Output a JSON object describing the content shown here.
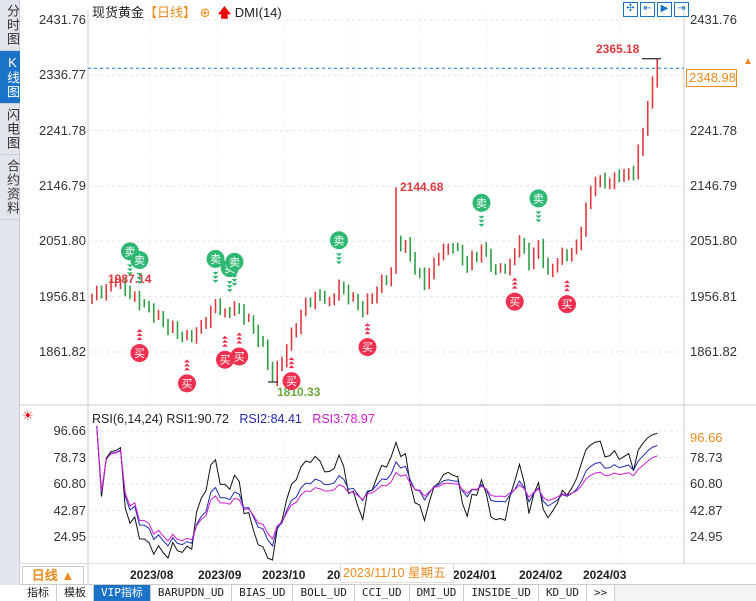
{
  "sidebar": {
    "items": [
      {
        "label": "分时图"
      },
      {
        "label": "K线图",
        "active": true
      },
      {
        "label": "闪电图"
      },
      {
        "label": "合约资料"
      }
    ]
  },
  "header": {
    "symbol": "现货黄金",
    "period": "【日线】",
    "indicator": "DMI(14)"
  },
  "toolbar": {
    "icons": [
      "crosshair-icon",
      "fit-start-icon",
      "play-icon",
      "go-end-icon"
    ]
  },
  "price_axis": {
    "labels": [
      "2431.76",
      "2336.77",
      "2241.78",
      "2146.79",
      "2051.80",
      "1956.81",
      "1861.82"
    ],
    "max": 2431.76,
    "min": 1861.82
  },
  "last_price": "2348.98",
  "annotations": {
    "high": "2365.18",
    "mid_high": "2144.68",
    "low": "1810.33",
    "left_high": "1987.14"
  },
  "colors": {
    "up": "#e0393e",
    "down": "#2e9e44",
    "sell": "#2fb872",
    "buy": "#f0304e",
    "rsi1": "#111111",
    "rsi2": "#1f2ab0",
    "rsi3": "#d21ad2",
    "accent": "#f08a1c",
    "brand": "#1a73c8"
  },
  "price_path": [
    [
      0,
      1958
    ],
    [
      3,
      1970
    ],
    [
      5,
      1985
    ],
    [
      8,
      1960
    ],
    [
      12,
      1935
    ],
    [
      16,
      1905
    ],
    [
      20,
      1885
    ],
    [
      23,
      1905
    ],
    [
      26,
      1945
    ],
    [
      28,
      1925
    ],
    [
      30,
      1940
    ],
    [
      33,
      1915
    ],
    [
      36,
      1870
    ],
    [
      38,
      1812
    ],
    [
      40,
      1850
    ],
    [
      42,
      1890
    ],
    [
      45,
      1945
    ],
    [
      48,
      1960
    ],
    [
      50,
      1945
    ],
    [
      52,
      1975
    ],
    [
      55,
      1950
    ],
    [
      57,
      1935
    ],
    [
      60,
      1970
    ],
    [
      63,
      2000
    ],
    [
      64,
      2050
    ],
    [
      66,
      2045
    ],
    [
      68,
      2005
    ],
    [
      70,
      1980
    ],
    [
      73,
      2030
    ],
    [
      76,
      2045
    ],
    [
      79,
      2010
    ],
    [
      82,
      2040
    ],
    [
      85,
      2000
    ],
    [
      88,
      2012
    ],
    [
      90,
      2055
    ],
    [
      92,
      2015
    ],
    [
      94,
      2045
    ],
    [
      96,
      1995
    ],
    [
      98,
      2020
    ],
    [
      100,
      2030
    ],
    [
      102,
      2040
    ],
    [
      104,
      2110
    ],
    [
      106,
      2160
    ],
    [
      108,
      2150
    ],
    [
      111,
      2165
    ],
    [
      114,
      2170
    ],
    [
      116,
      2240
    ],
    [
      117,
      2290
    ],
    [
      119,
      2349
    ]
  ],
  "signals": {
    "sell_label": "卖",
    "buy_label": "买",
    "sell": [
      8,
      10,
      26,
      29,
      30,
      52,
      82,
      94
    ],
    "buy": [
      10,
      20,
      28,
      31,
      42,
      58,
      89,
      100
    ]
  },
  "rsi": {
    "title": "RSI(6,14,24)",
    "rsi1": "RSI1:90.72",
    "rsi2": "RSI2:84.41",
    "rsi3": "RSI3:78.97",
    "axis_labels": [
      "96.66",
      "78.73",
      "60.80",
      "42.87",
      "24.95"
    ],
    "last": "96.66",
    "max": 96.66,
    "min": 24.95
  },
  "x_axis": {
    "labels": [
      "2023/08",
      "2023/09",
      "2023/10",
      "20",
      "2024/01",
      "2024/02",
      "2024/03"
    ],
    "tooltip": "2023/11/10 星期五",
    "period_button": "日线 ▲"
  },
  "bottom_tabs": [
    {
      "label": "指标"
    },
    {
      "label": "模板"
    },
    {
      "label": "VIP指标",
      "active": true
    },
    {
      "label": "BARUPDN_UD"
    },
    {
      "label": "BIAS_UD"
    },
    {
      "label": "BOLL_UD"
    },
    {
      "label": "CCI_UD"
    },
    {
      "label": "DMI_UD"
    },
    {
      "label": "INSIDE_UD"
    },
    {
      "label": "KD_UD"
    },
    {
      "label": ">>"
    }
  ]
}
